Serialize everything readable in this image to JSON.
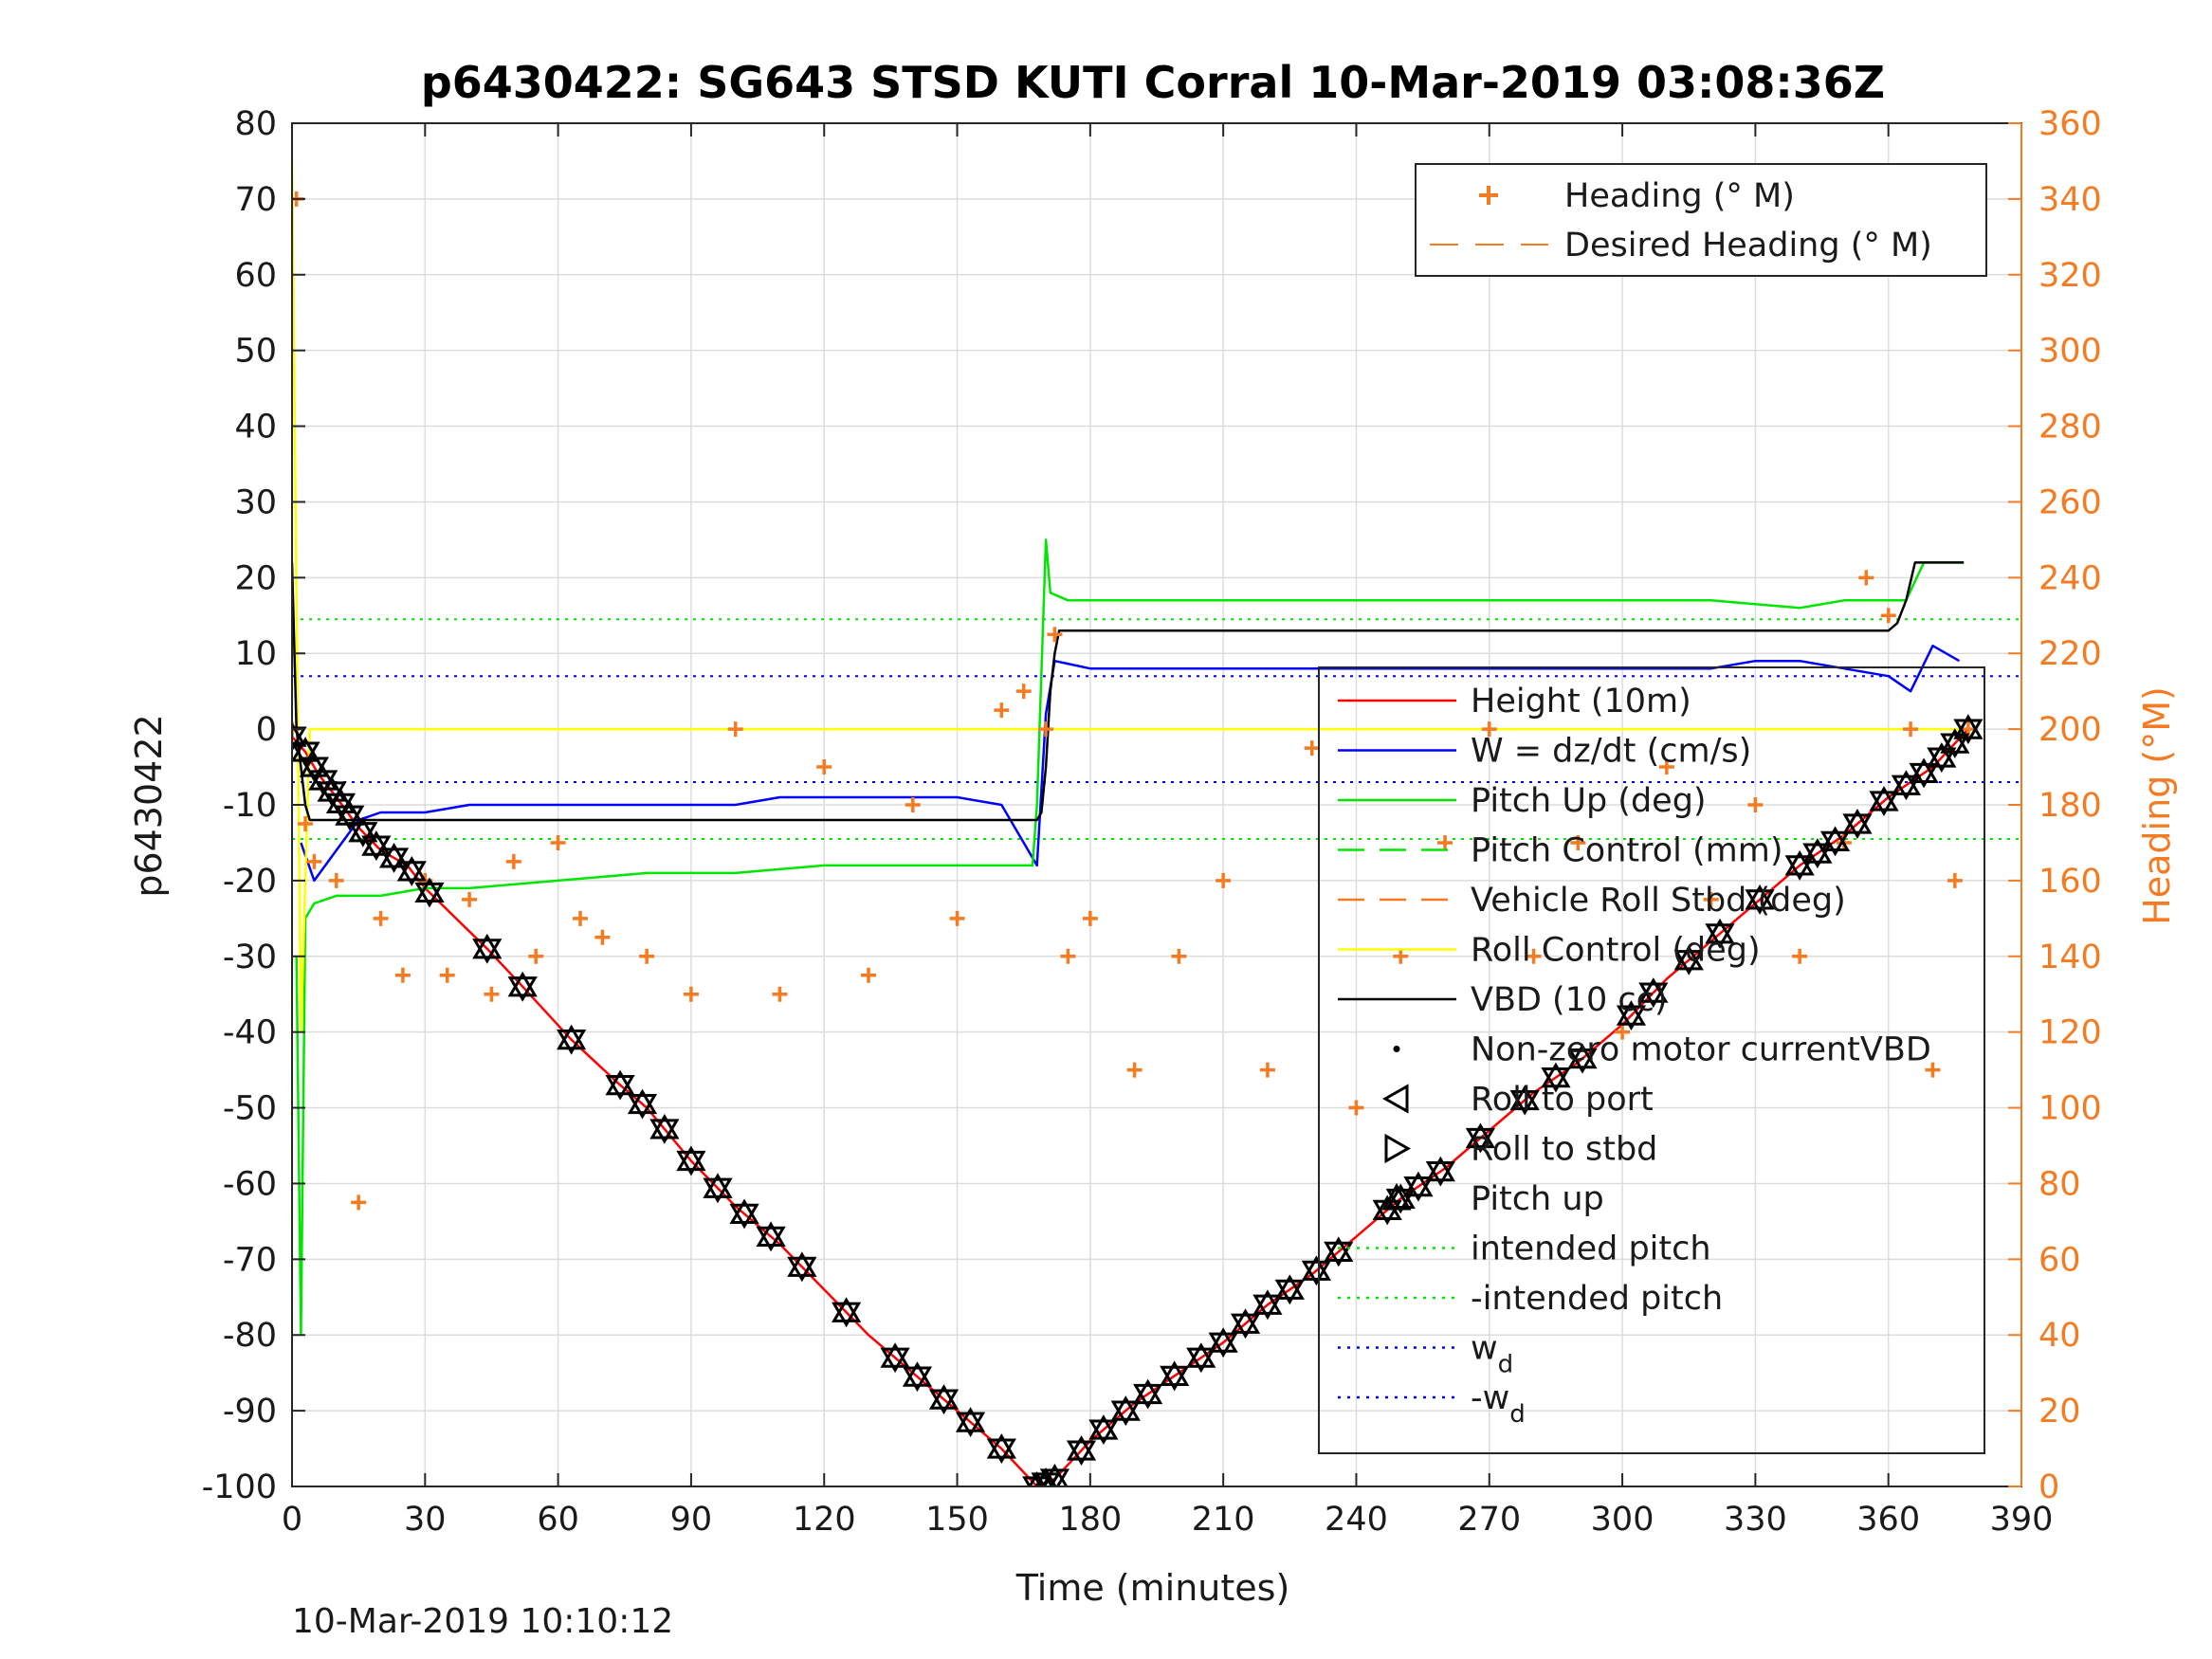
{
  "chart_data": {
    "type": "line",
    "title": "p6430422: SG643 STSD KUTI Corral 10-Mar-2019 03:08:36Z",
    "xlabel": "Time (minutes)",
    "ylabel": "p6430422",
    "y2label": "Heading (°M)",
    "footer": "10-Mar-2019 10:10:12",
    "xlim": [
      0,
      390
    ],
    "ylim": [
      -100,
      80
    ],
    "y2lim": [
      0,
      360
    ],
    "xticks": [
      "0",
      "30",
      "60",
      "90",
      "120",
      "150",
      "180",
      "210",
      "240",
      "270",
      "300",
      "330",
      "360",
      "390"
    ],
    "yticks": [
      "80",
      "70",
      "60",
      "50",
      "40",
      "30",
      "20",
      "10",
      "0",
      "-10",
      "-20",
      "-30",
      "-40",
      "-50",
      "-60",
      "-70",
      "-80",
      "-90",
      "-100"
    ],
    "y2ticks": [
      "360",
      "340",
      "320",
      "300",
      "280",
      "260",
      "240",
      "220",
      "200",
      "180",
      "160",
      "140",
      "120",
      "100",
      "80",
      "60",
      "40",
      "20",
      "0"
    ],
    "grid": true,
    "colors": {
      "height": "#ff0000",
      "w": "#0000ff",
      "pitch": "#00e600",
      "roll": "#ffff00",
      "vbd": "#000000",
      "heading": "#f47b22"
    },
    "legend_right": {
      "placement": "top-right",
      "entries": [
        {
          "label": "Heading (° M)",
          "style": "plus",
          "color": "#f47b22"
        },
        {
          "label": "Desired Heading (° M)",
          "style": "dash",
          "color": "#f47b22"
        }
      ]
    },
    "legend_main": {
      "placement": "right",
      "entries": [
        {
          "label": "Height (10m)",
          "style": "line",
          "color": "#ff0000"
        },
        {
          "label": "W = dz/dt (cm/s)",
          "style": "line",
          "color": "#0000ff"
        },
        {
          "label": "Pitch Up (deg)",
          "style": "line",
          "color": "#00e600"
        },
        {
          "label": "Pitch Control (mm)",
          "style": "dash",
          "color": "#00e600"
        },
        {
          "label": "Vehicle Roll Stbd (deg)",
          "style": "dash",
          "color": "#f47b22"
        },
        {
          "label": "Roll Control (deg)",
          "style": "line",
          "color": "#ffff00"
        },
        {
          "label": "VBD (10 cc)",
          "style": "line",
          "color": "#000000"
        },
        {
          "label": "Non-zero motor currentVBD",
          "style": "dot",
          "color": "#000000"
        },
        {
          "label": "Roll to port",
          "style": "tri-left",
          "color": "#000000"
        },
        {
          "label": "Roll to stbd",
          "style": "tri-right",
          "color": "#000000"
        },
        {
          "label": "Pitch up",
          "style": "tri-up",
          "color": "#000000"
        },
        {
          "label": "intended pitch",
          "style": "dotted",
          "color": "#00e600"
        },
        {
          "label": "-intended pitch",
          "style": "dotted",
          "color": "#00e600"
        },
        {
          "label": "w_d",
          "style": "dotted",
          "color": "#0000ff"
        },
        {
          "label": "-w_d",
          "style": "dotted",
          "color": "#0000ff"
        }
      ]
    },
    "series": [
      {
        "name": "Height (10m)",
        "x": [
          0,
          3,
          6,
          10,
          15,
          20,
          26,
          30,
          44,
          52,
          63,
          74,
          80,
          90,
          100,
          110,
          120,
          130,
          140,
          150,
          160,
          168,
          172,
          180,
          190,
          200,
          210,
          220,
          230,
          240,
          250,
          260,
          270,
          280,
          290,
          300,
          310,
          320,
          330,
          340,
          350,
          360,
          370,
          378
        ],
        "y": [
          -1,
          -3,
          -6,
          -9,
          -13,
          -16,
          -18,
          -21,
          -29,
          -34,
          -41,
          -47,
          -50,
          -57,
          -63,
          -68,
          -74,
          -80,
          -85,
          -90,
          -95,
          -100,
          -99,
          -94,
          -89,
          -85,
          -81,
          -76,
          -72,
          -67,
          -62,
          -58,
          -53,
          -48,
          -44,
          -39,
          -33,
          -28,
          -23,
          -18,
          -14,
          -9,
          -5,
          0
        ]
      },
      {
        "name": "W = dz/dt (cm/s)",
        "x": [
          2,
          5,
          10,
          15,
          20,
          30,
          40,
          50,
          60,
          70,
          80,
          90,
          100,
          110,
          120,
          130,
          140,
          150,
          160,
          165,
          168,
          170,
          172,
          180,
          190,
          200,
          210,
          220,
          230,
          240,
          250,
          260,
          270,
          280,
          290,
          300,
          310,
          320,
          330,
          340,
          350,
          360,
          365,
          370,
          376
        ],
        "y": [
          -15,
          -20,
          -16,
          -12,
          -11,
          -11,
          -10,
          -10,
          -10,
          -10,
          -10,
          -10,
          -10,
          -9,
          -9,
          -9,
          -9,
          -9,
          -10,
          -15,
          -18,
          2,
          9,
          8,
          8,
          8,
          8,
          8,
          8,
          8,
          8,
          8,
          8,
          8,
          8,
          8,
          8,
          8,
          9,
          9,
          8,
          7,
          5,
          11,
          9
        ]
      },
      {
        "name": "Pitch Up (deg)",
        "x": [
          1,
          2,
          3,
          5,
          10,
          20,
          30,
          40,
          60,
          80,
          100,
          120,
          140,
          160,
          167,
          168,
          170,
          171,
          175,
          180,
          200,
          220,
          240,
          260,
          280,
          300,
          320,
          340,
          350,
          360,
          364,
          368,
          377
        ],
        "y": [
          -30,
          -80,
          -25,
          -23,
          -22,
          -22,
          -21,
          -21,
          -20,
          -19,
          -19,
          -18,
          -18,
          -18,
          -18,
          -10,
          25,
          18,
          17,
          17,
          17,
          17,
          17,
          17,
          17,
          17,
          17,
          16,
          17,
          17,
          17,
          22,
          22
        ]
      },
      {
        "name": "Roll Control (deg)",
        "x": [
          0,
          2,
          4,
          6,
          10,
          30,
          60,
          80,
          90,
          120,
          150,
          165,
          168,
          170,
          180,
          200,
          240,
          300,
          350,
          370,
          378
        ],
        "y": [
          75,
          -40,
          0,
          0,
          0,
          0,
          0,
          0,
          0,
          0,
          0,
          0,
          0,
          0,
          0,
          0,
          0,
          0,
          0,
          0,
          0
        ]
      },
      {
        "name": "VBD (10 cc)",
        "x": [
          0,
          1,
          2,
          3,
          4,
          5,
          20,
          60,
          100,
          120,
          150,
          168,
          169,
          170,
          171,
          172,
          173,
          200,
          250,
          300,
          340,
          350,
          360,
          362,
          364,
          366,
          377
        ],
        "y": [
          22,
          0,
          -5,
          -10,
          -12,
          -12,
          -12,
          -12,
          -12,
          -12,
          -12,
          -12,
          -11,
          -5,
          5,
          10,
          13,
          13,
          13,
          13,
          13,
          13,
          13,
          14,
          17,
          22,
          22
        ]
      },
      {
        "name": "Heading (° M)",
        "x": [
          0,
          1,
          3,
          5,
          10,
          15,
          20,
          25,
          30,
          35,
          40,
          45,
          50,
          55,
          60,
          65,
          70,
          80,
          90,
          100,
          110,
          120,
          130,
          140,
          150,
          160,
          165,
          170,
          172,
          175,
          180,
          190,
          200,
          210,
          220,
          230,
          240,
          250,
          260,
          270,
          280,
          290,
          300,
          310,
          320,
          330,
          340,
          350,
          355,
          360,
          365,
          370,
          375,
          378
        ],
        "y": [
          200,
          340,
          175,
          165,
          160,
          75,
          150,
          135,
          160,
          135,
          155,
          130,
          165,
          140,
          170,
          150,
          145,
          140,
          130,
          200,
          130,
          190,
          135,
          180,
          150,
          205,
          210,
          200,
          225,
          140,
          150,
          110,
          140,
          160,
          110,
          195,
          100,
          140,
          170,
          200,
          140,
          170,
          120,
          190,
          155,
          180,
          140,
          170,
          240,
          230,
          200,
          110,
          160,
          200
        ]
      }
    ],
    "markers": {
      "name": "Pitch up",
      "x": [
        0,
        3,
        5,
        7,
        9,
        11,
        13,
        16,
        19,
        23,
        27,
        31,
        44,
        52,
        63,
        74,
        79,
        84,
        90,
        96,
        102,
        108,
        115,
        125,
        136,
        141,
        147,
        153,
        160,
        168,
        170,
        172,
        178,
        183,
        188,
        193,
        199,
        205,
        210,
        215,
        220,
        225,
        231,
        236,
        247,
        250,
        254,
        259,
        268,
        278,
        285,
        291,
        302,
        307,
        315,
        322,
        331,
        340,
        344,
        348,
        353,
        359,
        364,
        368,
        372,
        375,
        378
      ]
    }
  }
}
